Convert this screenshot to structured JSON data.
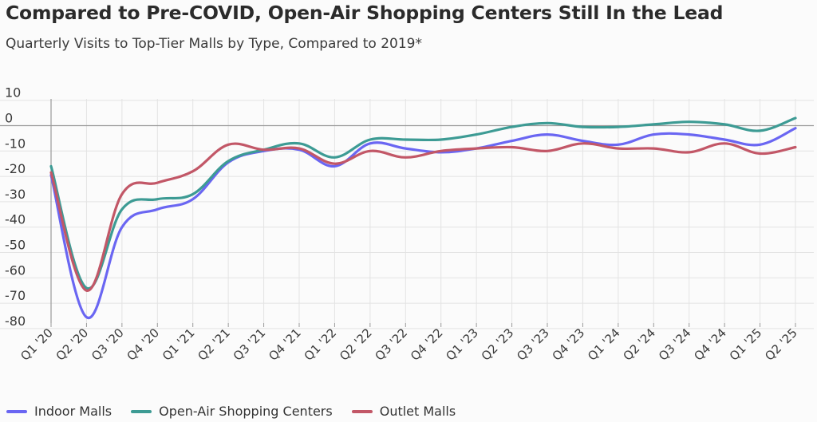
{
  "chart_data": {
    "type": "line",
    "title": "Compared to Pre-COVID, Open-Air Shopping Centers Still In the Lead",
    "subtitle": "Quarterly Visits to Top-Tier Malls by Type, Compared to 2019*",
    "xlabel": "",
    "ylabel": "",
    "ylim": [
      -85,
      10
    ],
    "yticks": [
      10,
      0,
      -10,
      -20,
      -30,
      -40,
      -50,
      -60,
      -70,
      -80
    ],
    "grid": true,
    "legend_position": "bottom-left",
    "categories": [
      "Q1 '20",
      "Q2 '20",
      "Q3 '20",
      "Q4 '20",
      "Q1 '21",
      "Q2 '21",
      "Q3 '21",
      "Q4 '21",
      "Q1 '22",
      "Q2 '22",
      "Q3 '22",
      "Q4 '22",
      "Q1 '23",
      "Q2 '23",
      "Q3 '23",
      "Q4 '23",
      "Q1 '24",
      "Q2 '24",
      "Q3 '24",
      "Q4 '24",
      "Q1 '25",
      "Q2 '25"
    ],
    "series": [
      {
        "name": "Indoor Malls",
        "color": "#6a66f2",
        "values": [
          -19.5,
          -75.5,
          -40,
          -33,
          -29,
          -14.5,
          -10,
          -9.5,
          -16,
          -7,
          -9,
          -10.5,
          -9,
          -6,
          -3.5,
          -6,
          -7.5,
          -3.5,
          -3.5,
          -5.5,
          -7.5,
          -1
        ]
      },
      {
        "name": "Open-Air Shopping Centers",
        "color": "#3d9b94",
        "values": [
          -16,
          -64,
          -33,
          -29,
          -27,
          -14,
          -9.5,
          -7,
          -12.5,
          -5.5,
          -5.5,
          -5.5,
          -3.5,
          -0.5,
          1,
          -0.5,
          -0.5,
          0.5,
          1.5,
          0.5,
          -2,
          3
        ]
      },
      {
        "name": "Outlet Malls",
        "color": "#c25767",
        "values": [
          -18.5,
          -65,
          -27,
          -22.5,
          -18,
          -7.5,
          -9.5,
          -9,
          -15,
          -10,
          -12.5,
          -10,
          -9,
          -8.5,
          -10,
          -7,
          -9,
          -9,
          -10.5,
          -7,
          -11,
          -8.5
        ]
      }
    ]
  }
}
